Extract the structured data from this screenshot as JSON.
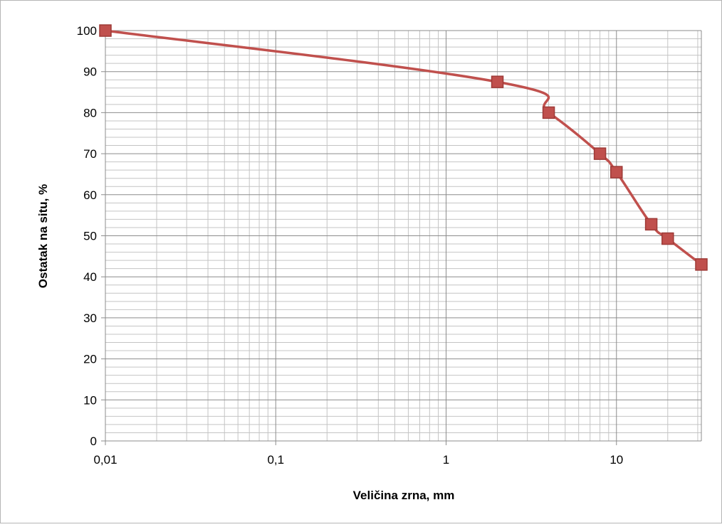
{
  "chart_data": {
    "type": "line",
    "title": "",
    "xlabel": "Veličina zrna, mm",
    "ylabel": "Ostatak na situ, %",
    "x_scale": "log",
    "xlim": [
      0.01,
      31.5
    ],
    "ylim": [
      0,
      100
    ],
    "x_ticks": [
      {
        "value": 0.01,
        "label": "0,01"
      },
      {
        "value": 0.1,
        "label": "0,1"
      },
      {
        "value": 1,
        "label": "1"
      },
      {
        "value": 10,
        "label": "10"
      }
    ],
    "y_ticks": [
      {
        "value": 0,
        "label": "0"
      },
      {
        "value": 10,
        "label": "10"
      },
      {
        "value": 20,
        "label": "20"
      },
      {
        "value": 30,
        "label": "30"
      },
      {
        "value": 40,
        "label": "40"
      },
      {
        "value": 50,
        "label": "50"
      },
      {
        "value": 60,
        "label": "60"
      },
      {
        "value": 70,
        "label": "70"
      },
      {
        "value": 80,
        "label": "80"
      },
      {
        "value": 90,
        "label": "90"
      },
      {
        "value": 100,
        "label": "100"
      }
    ],
    "grid": true,
    "minor_grid_y_step": 2,
    "legend": "none",
    "series": [
      {
        "color": "#c0504d",
        "marker": "square",
        "smooth": true,
        "points": [
          {
            "x": 0.01,
            "y": 100
          },
          {
            "x": 2,
            "y": 87.5
          },
          {
            "x": 4,
            "y": 80
          },
          {
            "x": 8,
            "y": 70
          },
          {
            "x": 10,
            "y": 65.5
          },
          {
            "x": 16,
            "y": 52.8
          },
          {
            "x": 20,
            "y": 49.3
          },
          {
            "x": 31.5,
            "y": 43
          }
        ]
      }
    ]
  },
  "colors": {
    "major_grid": "#8c8c8c",
    "minor_grid": "#c4c4c4",
    "frame_border": "#b5b5b5",
    "series": "#c0504d",
    "marker_stroke": "#9e3a37"
  }
}
